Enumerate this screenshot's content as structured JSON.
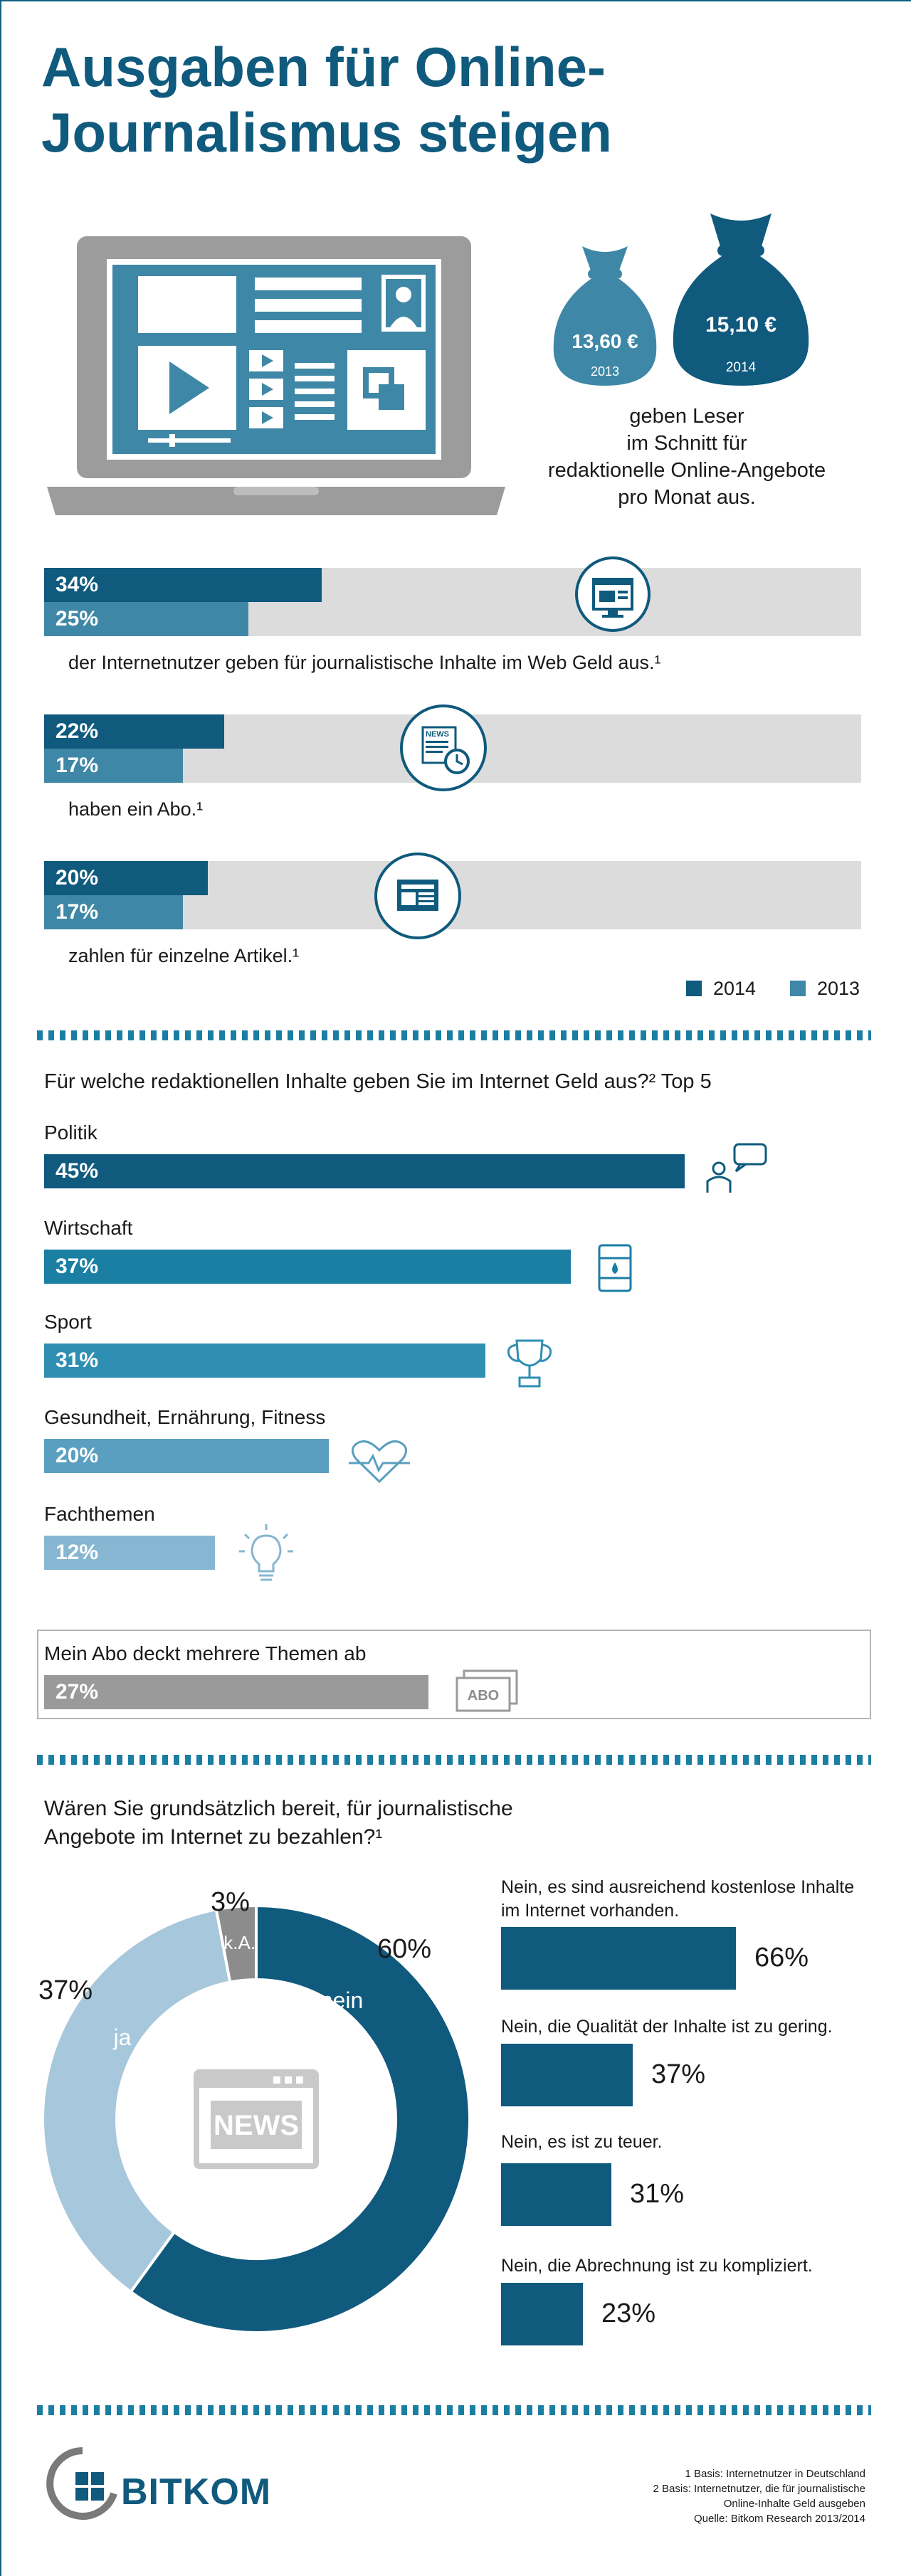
{
  "title_line1": "Ausgaben für Online-",
  "title_line2": "Journalismus steigen",
  "spending": {
    "amount_2013": "13,60 €",
    "year_2013": "2013",
    "amount_2014": "15,10 €",
    "year_2014": "2014",
    "caption_lines": [
      "geben Leser",
      "im Schnitt für",
      "redaktionelle Online-Angebote",
      "pro Monat aus."
    ]
  },
  "colors": {
    "dark": "#0f5a7d",
    "mid": "#3f87a6",
    "track": "#dcdcdc",
    "title": "#0f5a7d",
    "grey": "#9a9a9a",
    "light": "#a7c7dc"
  },
  "chart_data": [
    {
      "type": "bar",
      "categories": [
        "der Internetnutzer geben für journalistische Inhalte im Web Geld aus.¹",
        "haben ein Abo.¹",
        "zahlen für einzelne Artikel.¹"
      ],
      "series": [
        {
          "name": "2014",
          "values": [
            34,
            22,
            20
          ],
          "labels": [
            "34%",
            "22%",
            "20%"
          ]
        },
        {
          "name": "2013",
          "values": [
            25,
            17,
            17
          ],
          "labels": [
            "25%",
            "17%",
            "17%"
          ]
        }
      ],
      "xlim": [
        0,
        100
      ]
    },
    {
      "type": "bar",
      "title": "Für welche redaktionellen Inhalte geben Sie im Internet Geld aus?² Top 5",
      "categories": [
        "Politik",
        "Wirtschaft",
        "Sport",
        "Gesundheit, Ernährung, Fitness",
        "Fachthemen",
        "Mein Abo deckt mehrere Themen ab"
      ],
      "values": [
        45,
        37,
        31,
        20,
        12,
        27
      ],
      "labels": [
        "45%",
        "37%",
        "31%",
        "20%",
        "12%",
        "27%"
      ],
      "icons": [
        "speech-bubble-person-icon",
        "oil-barrel-icon",
        "trophy-icon",
        "heart-pulse-icon",
        "lightbulb-icon",
        "abo-stamp-icon"
      ],
      "colors": [
        "#0f5a7d",
        "#1b7ea3",
        "#2f8fb3",
        "#5a9fc0",
        "#86b6d1",
        "#9a9a9a"
      ],
      "xlim": [
        0,
        100
      ]
    },
    {
      "type": "pie",
      "title": "Wären Sie grundsätzlich bereit, für journalistische Angebote im Internet zu bezahlen?¹",
      "categories": [
        "nein",
        "ja",
        "k.A."
      ],
      "values": [
        60,
        37,
        3
      ],
      "labels": [
        "60%",
        "37%",
        "3%"
      ],
      "colors": [
        "#0f5a7d",
        "#a7c7dc",
        "#8c8c8c"
      ],
      "center_text": "NEWS"
    },
    {
      "type": "bar",
      "categories": [
        "Nein, es sind ausreichend kostenlose Inhalte im Internet vorhanden.",
        "Nein, die Qualität der Inhalte ist zu gering.",
        "Nein, es ist zu teuer.",
        "Nein, die Abrechnung ist zu kompliziert."
      ],
      "values": [
        66,
        37,
        31,
        23
      ],
      "labels": [
        "66%",
        "37%",
        "31%",
        "23%"
      ],
      "xlim": [
        0,
        66
      ]
    }
  ],
  "abo_text": "ABO",
  "footer": {
    "logo": "BITKOM",
    "notes": [
      "1 Basis: Internetnutzer in Deutschland",
      "2 Basis: Internetnutzer, die für journalistische",
      "Online-Inhalte Geld ausgeben",
      "Quelle: Bitkom Research 2013/2014"
    ]
  }
}
